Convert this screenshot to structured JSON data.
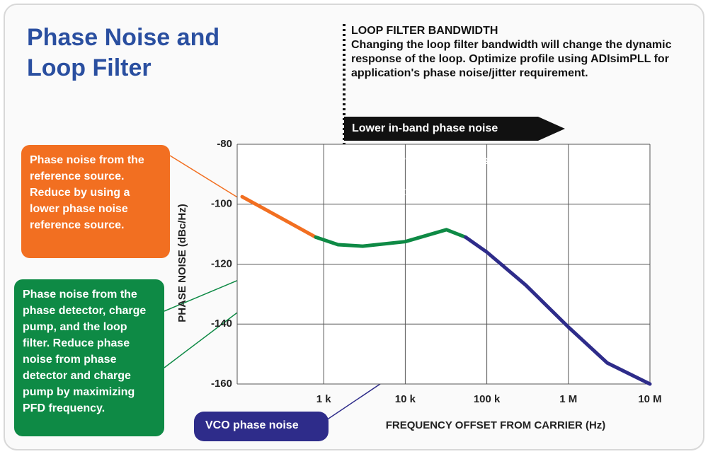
{
  "title": "Phase Noise and Loop Filter",
  "loop_filter": {
    "heading": "LOOP FILTER BANDWIDTH",
    "text": "Changing the loop filter bandwidth will change the dynamic response of the loop. Optimize profile using ADIsimPLL for application's phase noise/jitter requirement."
  },
  "effects": [
    "Lower in-band phase noise",
    "Higher far-out phase noise",
    "Faster settling time"
  ],
  "callouts": [
    {
      "text": "Phase noise from the reference source. Reduce by using a lower phase noise reference source.",
      "color": "#f26f21"
    },
    {
      "text": "Phase noise from the phase detector, charge pump, and the loop filter. Reduce phase noise from phase detector and charge pump by maximizing PFD frequency.",
      "color": "#0e8a45"
    },
    {
      "text": "VCO phase noise",
      "color": "#2e2c8a"
    }
  ],
  "chart_data": {
    "type": "line",
    "x_label": "FREQUENCY OFFSET FROM CARRIER (Hz)",
    "y_label": "PHASE NOISE (dBc/Hz)",
    "xscale": "log",
    "xlim": [
      100,
      10000000
    ],
    "xticks": [
      {
        "value": 1000,
        "label": "1 k"
      },
      {
        "value": 10000,
        "label": "10 k"
      },
      {
        "value": 100000,
        "label": "100 k"
      },
      {
        "value": 1000000,
        "label": "1 M"
      },
      {
        "value": 10000000,
        "label": "10 M"
      }
    ],
    "ylim": [
      -160,
      -80
    ],
    "yticks": [
      -80,
      -100,
      -120,
      -140,
      -160
    ],
    "grid": true,
    "series": [
      {
        "color": "#f26f21",
        "x": [
          100,
          200,
          400,
          800
        ],
        "values": [
          -97.5,
          -102,
          -106.5,
          -111
        ]
      },
      {
        "color": "#0e8a45",
        "x": [
          800,
          1500,
          3000,
          10000,
          32000,
          55000
        ],
        "values": [
          -111,
          -113.5,
          -114,
          -112.5,
          -108.5,
          -111
        ]
      },
      {
        "color": "#2e2c8a",
        "x": [
          55000,
          100000,
          300000,
          1000000,
          3000000,
          10000000
        ],
        "values": [
          -111,
          -116,
          -127,
          -141,
          -153,
          -160
        ]
      }
    ]
  }
}
